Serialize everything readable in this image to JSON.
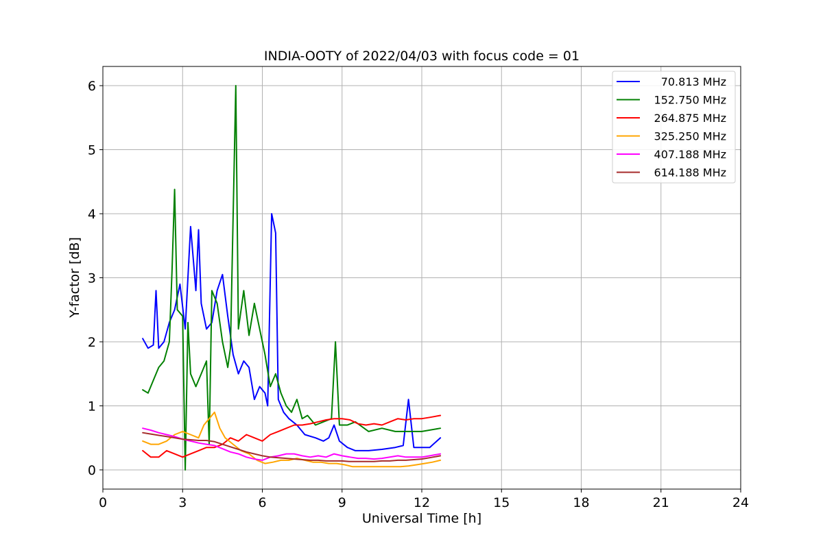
{
  "chart_data": {
    "type": "line",
    "title": "INDIA-OOTY of 2022/04/03 with focus code = 01",
    "xlabel": "Universal Time [h]",
    "ylabel": "Y-factor [dB]",
    "xlim": [
      0,
      24
    ],
    "ylim": [
      -0.3,
      6.3
    ],
    "xticks": [
      0,
      3,
      6,
      9,
      12,
      15,
      18,
      21,
      24
    ],
    "yticks": [
      0,
      1,
      2,
      3,
      4,
      5,
      6
    ],
    "grid": true,
    "legend_position": "top-right",
    "series": [
      {
        "name": "70.813 MHz",
        "color": "#0000ff",
        "points": [
          [
            1.5,
            2.05
          ],
          [
            1.7,
            1.9
          ],
          [
            1.9,
            1.95
          ],
          [
            2.0,
            2.8
          ],
          [
            2.1,
            1.9
          ],
          [
            2.3,
            2.0
          ],
          [
            2.5,
            2.3
          ],
          [
            2.7,
            2.5
          ],
          [
            2.9,
            2.9
          ],
          [
            3.1,
            2.2
          ],
          [
            3.3,
            3.8
          ],
          [
            3.5,
            2.8
          ],
          [
            3.6,
            3.75
          ],
          [
            3.7,
            2.6
          ],
          [
            3.9,
            2.2
          ],
          [
            4.1,
            2.3
          ],
          [
            4.3,
            2.8
          ],
          [
            4.5,
            3.05
          ],
          [
            4.7,
            2.4
          ],
          [
            4.9,
            1.8
          ],
          [
            5.1,
            1.5
          ],
          [
            5.3,
            1.7
          ],
          [
            5.5,
            1.6
          ],
          [
            5.7,
            1.1
          ],
          [
            5.9,
            1.3
          ],
          [
            6.1,
            1.2
          ],
          [
            6.2,
            1.0
          ],
          [
            6.35,
            4.0
          ],
          [
            6.5,
            3.7
          ],
          [
            6.6,
            1.1
          ],
          [
            6.8,
            0.9
          ],
          [
            7.0,
            0.8
          ],
          [
            7.3,
            0.7
          ],
          [
            7.6,
            0.55
          ],
          [
            8.0,
            0.5
          ],
          [
            8.3,
            0.45
          ],
          [
            8.5,
            0.5
          ],
          [
            8.7,
            0.7
          ],
          [
            8.9,
            0.45
          ],
          [
            9.2,
            0.35
          ],
          [
            9.5,
            0.3
          ],
          [
            10.0,
            0.3
          ],
          [
            10.5,
            0.32
          ],
          [
            11.0,
            0.35
          ],
          [
            11.3,
            0.38
          ],
          [
            11.5,
            1.1
          ],
          [
            11.7,
            0.35
          ],
          [
            12.0,
            0.35
          ],
          [
            12.3,
            0.35
          ],
          [
            12.7,
            0.5
          ]
        ]
      },
      {
        "name": "152.750 MHz",
        "color": "#008000",
        "points": [
          [
            1.5,
            1.25
          ],
          [
            1.7,
            1.2
          ],
          [
            1.9,
            1.4
          ],
          [
            2.1,
            1.6
          ],
          [
            2.3,
            1.7
          ],
          [
            2.5,
            2.0
          ],
          [
            2.6,
            3.1
          ],
          [
            2.7,
            4.38
          ],
          [
            2.8,
            2.5
          ],
          [
            3.0,
            2.4
          ],
          [
            3.1,
            0.0
          ],
          [
            3.2,
            2.3
          ],
          [
            3.3,
            1.5
          ],
          [
            3.5,
            1.3
          ],
          [
            3.7,
            1.5
          ],
          [
            3.9,
            1.7
          ],
          [
            4.0,
            0.4
          ],
          [
            4.1,
            2.8
          ],
          [
            4.3,
            2.6
          ],
          [
            4.5,
            2.0
          ],
          [
            4.7,
            1.6
          ],
          [
            4.8,
            1.9
          ],
          [
            5.0,
            6.0
          ],
          [
            5.1,
            2.2
          ],
          [
            5.3,
            2.8
          ],
          [
            5.5,
            2.1
          ],
          [
            5.7,
            2.6
          ],
          [
            5.9,
            2.2
          ],
          [
            6.1,
            1.8
          ],
          [
            6.3,
            1.3
          ],
          [
            6.5,
            1.5
          ],
          [
            6.7,
            1.2
          ],
          [
            6.9,
            1.0
          ],
          [
            7.1,
            0.9
          ],
          [
            7.3,
            1.1
          ],
          [
            7.5,
            0.8
          ],
          [
            7.7,
            0.85
          ],
          [
            8.0,
            0.7
          ],
          [
            8.3,
            0.75
          ],
          [
            8.6,
            0.8
          ],
          [
            8.75,
            2.0
          ],
          [
            8.9,
            0.7
          ],
          [
            9.2,
            0.7
          ],
          [
            9.5,
            0.75
          ],
          [
            10.0,
            0.6
          ],
          [
            10.5,
            0.65
          ],
          [
            11.0,
            0.6
          ],
          [
            11.5,
            0.6
          ],
          [
            12.0,
            0.6
          ],
          [
            12.7,
            0.65
          ]
        ]
      },
      {
        "name": "264.875 MHz",
        "color": "#ff0000",
        "points": [
          [
            1.5,
            0.3
          ],
          [
            1.8,
            0.2
          ],
          [
            2.1,
            0.2
          ],
          [
            2.4,
            0.3
          ],
          [
            2.7,
            0.25
          ],
          [
            3.0,
            0.2
          ],
          [
            3.3,
            0.25
          ],
          [
            3.6,
            0.3
          ],
          [
            3.9,
            0.35
          ],
          [
            4.2,
            0.35
          ],
          [
            4.5,
            0.4
          ],
          [
            4.8,
            0.5
          ],
          [
            5.1,
            0.45
          ],
          [
            5.4,
            0.55
          ],
          [
            5.7,
            0.5
          ],
          [
            6.0,
            0.45
          ],
          [
            6.3,
            0.55
          ],
          [
            6.6,
            0.6
          ],
          [
            6.9,
            0.65
          ],
          [
            7.2,
            0.7
          ],
          [
            7.5,
            0.7
          ],
          [
            7.8,
            0.72
          ],
          [
            8.1,
            0.75
          ],
          [
            8.4,
            0.78
          ],
          [
            8.7,
            0.8
          ],
          [
            9.0,
            0.8
          ],
          [
            9.3,
            0.78
          ],
          [
            9.6,
            0.72
          ],
          [
            9.9,
            0.7
          ],
          [
            10.2,
            0.72
          ],
          [
            10.5,
            0.7
          ],
          [
            10.8,
            0.75
          ],
          [
            11.1,
            0.8
          ],
          [
            11.4,
            0.78
          ],
          [
            11.7,
            0.8
          ],
          [
            12.0,
            0.8
          ],
          [
            12.3,
            0.82
          ],
          [
            12.7,
            0.85
          ]
        ]
      },
      {
        "name": "325.250 MHz",
        "color": "#ffa500",
        "points": [
          [
            1.5,
            0.45
          ],
          [
            1.8,
            0.4
          ],
          [
            2.1,
            0.4
          ],
          [
            2.4,
            0.45
          ],
          [
            2.7,
            0.55
          ],
          [
            3.0,
            0.6
          ],
          [
            3.3,
            0.55
          ],
          [
            3.6,
            0.5
          ],
          [
            3.8,
            0.7
          ],
          [
            4.0,
            0.8
          ],
          [
            4.2,
            0.9
          ],
          [
            4.4,
            0.65
          ],
          [
            4.6,
            0.5
          ],
          [
            4.9,
            0.4
          ],
          [
            5.2,
            0.3
          ],
          [
            5.5,
            0.25
          ],
          [
            5.8,
            0.15
          ],
          [
            6.1,
            0.1
          ],
          [
            6.4,
            0.12
          ],
          [
            6.7,
            0.15
          ],
          [
            7.0,
            0.15
          ],
          [
            7.3,
            0.18
          ],
          [
            7.6,
            0.15
          ],
          [
            7.9,
            0.12
          ],
          [
            8.2,
            0.12
          ],
          [
            8.5,
            0.1
          ],
          [
            8.8,
            0.1
          ],
          [
            9.1,
            0.08
          ],
          [
            9.4,
            0.05
          ],
          [
            9.7,
            0.05
          ],
          [
            10.0,
            0.05
          ],
          [
            10.3,
            0.05
          ],
          [
            10.6,
            0.05
          ],
          [
            10.9,
            0.05
          ],
          [
            11.2,
            0.05
          ],
          [
            11.5,
            0.06
          ],
          [
            11.8,
            0.08
          ],
          [
            12.1,
            0.1
          ],
          [
            12.4,
            0.12
          ],
          [
            12.7,
            0.15
          ]
        ]
      },
      {
        "name": "407.188 MHz",
        "color": "#ff00ff",
        "points": [
          [
            1.5,
            0.65
          ],
          [
            1.8,
            0.62
          ],
          [
            2.1,
            0.58
          ],
          [
            2.4,
            0.55
          ],
          [
            2.7,
            0.52
          ],
          [
            3.0,
            0.48
          ],
          [
            3.3,
            0.45
          ],
          [
            3.6,
            0.42
          ],
          [
            3.9,
            0.4
          ],
          [
            4.2,
            0.38
          ],
          [
            4.5,
            0.33
          ],
          [
            4.8,
            0.28
          ],
          [
            5.1,
            0.25
          ],
          [
            5.4,
            0.2
          ],
          [
            5.7,
            0.17
          ],
          [
            6.0,
            0.15
          ],
          [
            6.3,
            0.2
          ],
          [
            6.6,
            0.22
          ],
          [
            6.9,
            0.25
          ],
          [
            7.2,
            0.25
          ],
          [
            7.5,
            0.22
          ],
          [
            7.8,
            0.2
          ],
          [
            8.1,
            0.22
          ],
          [
            8.4,
            0.2
          ],
          [
            8.7,
            0.25
          ],
          [
            9.0,
            0.22
          ],
          [
            9.3,
            0.2
          ],
          [
            9.6,
            0.18
          ],
          [
            9.9,
            0.18
          ],
          [
            10.2,
            0.17
          ],
          [
            10.5,
            0.18
          ],
          [
            10.8,
            0.2
          ],
          [
            11.1,
            0.22
          ],
          [
            11.4,
            0.2
          ],
          [
            11.7,
            0.2
          ],
          [
            12.0,
            0.2
          ],
          [
            12.3,
            0.22
          ],
          [
            12.7,
            0.25
          ]
        ]
      },
      {
        "name": "614.188 MHz",
        "color": "#a52a2a",
        "points": [
          [
            1.5,
            0.58
          ],
          [
            1.8,
            0.56
          ],
          [
            2.1,
            0.54
          ],
          [
            2.4,
            0.52
          ],
          [
            2.7,
            0.5
          ],
          [
            3.0,
            0.48
          ],
          [
            3.3,
            0.47
          ],
          [
            3.6,
            0.46
          ],
          [
            3.9,
            0.46
          ],
          [
            4.2,
            0.44
          ],
          [
            4.5,
            0.4
          ],
          [
            4.8,
            0.36
          ],
          [
            5.1,
            0.32
          ],
          [
            5.4,
            0.28
          ],
          [
            5.7,
            0.25
          ],
          [
            6.0,
            0.22
          ],
          [
            6.3,
            0.2
          ],
          [
            6.6,
            0.19
          ],
          [
            6.9,
            0.18
          ],
          [
            7.2,
            0.17
          ],
          [
            7.5,
            0.16
          ],
          [
            7.8,
            0.15
          ],
          [
            8.1,
            0.15
          ],
          [
            8.4,
            0.14
          ],
          [
            8.7,
            0.14
          ],
          [
            9.0,
            0.14
          ],
          [
            9.3,
            0.13
          ],
          [
            9.6,
            0.13
          ],
          [
            9.9,
            0.13
          ],
          [
            10.2,
            0.13
          ],
          [
            10.5,
            0.14
          ],
          [
            10.8,
            0.14
          ],
          [
            11.1,
            0.15
          ],
          [
            11.4,
            0.15
          ],
          [
            11.7,
            0.16
          ],
          [
            12.0,
            0.17
          ],
          [
            12.3,
            0.19
          ],
          [
            12.7,
            0.22
          ]
        ]
      }
    ]
  }
}
